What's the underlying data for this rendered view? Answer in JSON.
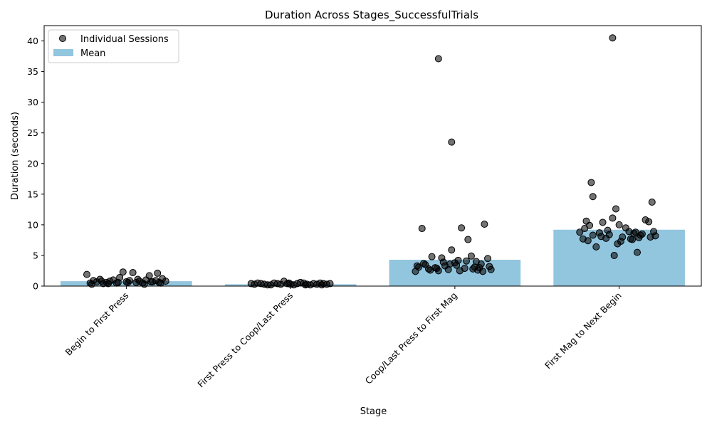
{
  "chart_data": {
    "type": "bar",
    "title": "Duration Across Stages_SuccessfulTrials",
    "xlabel": "Stage",
    "ylabel": "Duration (seconds)",
    "ylim": [
      0,
      42.5
    ],
    "yticks": [
      0,
      5,
      10,
      15,
      20,
      25,
      30,
      35,
      40
    ],
    "categories": [
      "Begin to First Press",
      "First Press to Coop/Last Press",
      "Coop/Last Press to First Mag",
      "First Mag to Next Begin"
    ],
    "legend": {
      "placement": "upper-left",
      "entries": [
        "Individual Sessions",
        "Mean"
      ]
    },
    "colors": {
      "bar": "#92c5de",
      "point": "#000000",
      "point_alpha": 0.55
    },
    "series": [
      {
        "name": "Mean",
        "values": [
          0.8,
          0.3,
          4.3,
          9.2
        ]
      },
      {
        "name": "Individual Sessions",
        "points": [
          [
            [
              -0.24,
              1.9
            ],
            [
              -0.22,
              0.5
            ],
            [
              -0.2,
              0.9
            ],
            [
              -0.18,
              0.7
            ],
            [
              -0.16,
              1.1
            ],
            [
              -0.14,
              0.4
            ],
            [
              -0.12,
              0.6
            ],
            [
              -0.1,
              0.8
            ],
            [
              -0.08,
              1.0
            ],
            [
              -0.06,
              0.5
            ],
            [
              -0.04,
              1.4
            ],
            [
              -0.02,
              2.3
            ],
            [
              0.0,
              0.7
            ],
            [
              0.02,
              0.9
            ],
            [
              0.04,
              2.2
            ],
            [
              0.06,
              0.6
            ],
            [
              0.08,
              0.8
            ],
            [
              0.1,
              0.5
            ],
            [
              0.12,
              1.0
            ],
            [
              0.14,
              1.7
            ],
            [
              0.16,
              0.7
            ],
            [
              0.18,
              0.9
            ],
            [
              0.2,
              0.6
            ],
            [
              0.22,
              1.2
            ],
            [
              0.24,
              0.8
            ],
            [
              -0.21,
              0.3
            ],
            [
              -0.11,
              0.4
            ],
            [
              0.01,
              0.6
            ],
            [
              0.11,
              0.3
            ],
            [
              0.21,
              0.5
            ],
            [
              0.19,
              2.1
            ],
            [
              -0.15,
              0.8
            ],
            [
              0.07,
              1.1
            ],
            [
              -0.05,
              0.6
            ],
            [
              0.15,
              0.7
            ]
          ],
          [
            [
              -0.22,
              0.3
            ],
            [
              -0.18,
              0.4
            ],
            [
              -0.14,
              0.2
            ],
            [
              -0.1,
              0.5
            ],
            [
              -0.06,
              0.3
            ],
            [
              -0.02,
              0.4
            ],
            [
              0.02,
              0.2
            ],
            [
              0.06,
              0.6
            ],
            [
              0.1,
              0.3
            ],
            [
              0.14,
              0.4
            ],
            [
              0.18,
              0.5
            ],
            [
              0.22,
              0.3
            ],
            [
              -0.2,
              0.5
            ],
            [
              -0.12,
              0.2
            ],
            [
              -0.04,
              0.8
            ],
            [
              0.04,
              0.4
            ],
            [
              0.12,
              0.2
            ],
            [
              0.2,
              0.4
            ],
            [
              -0.16,
              0.3
            ],
            [
              -0.08,
              0.4
            ],
            [
              0.0,
              0.3
            ],
            [
              0.08,
              0.5
            ],
            [
              0.16,
              0.3
            ],
            [
              0.24,
              0.4
            ],
            [
              -0.24,
              0.4
            ],
            [
              0.09,
              0.2
            ],
            [
              -0.01,
              0.5
            ],
            [
              0.19,
              0.2
            ]
          ],
          [
            [
              -0.24,
              2.4
            ],
            [
              -0.22,
              3.1
            ],
            [
              -0.2,
              9.4
            ],
            [
              -0.18,
              3.5
            ],
            [
              -0.16,
              2.8
            ],
            [
              -0.14,
              4.8
            ],
            [
              -0.12,
              3.0
            ],
            [
              -0.1,
              2.5
            ],
            [
              -0.08,
              4.6
            ],
            [
              -0.06,
              3.3
            ],
            [
              -0.04,
              2.7
            ],
            [
              -0.02,
              5.9
            ],
            [
              0.0,
              3.8
            ],
            [
              0.02,
              4.2
            ],
            [
              0.04,
              9.5
            ],
            [
              0.06,
              2.9
            ],
            [
              0.08,
              7.6
            ],
            [
              0.1,
              4.9
            ],
            [
              0.12,
              3.1
            ],
            [
              0.14,
              2.6
            ],
            [
              0.16,
              3.6
            ],
            [
              0.18,
              10.1
            ],
            [
              0.2,
              4.5
            ],
            [
              0.22,
              2.7
            ],
            [
              -0.1,
              37.1
            ],
            [
              -0.02,
              23.5
            ],
            [
              -0.19,
              3.7
            ],
            [
              -0.11,
              2.9
            ],
            [
              0.01,
              3.4
            ],
            [
              0.11,
              2.8
            ],
            [
              0.21,
              3.2
            ],
            [
              -0.07,
              3.9
            ],
            [
              0.07,
              4.1
            ],
            [
              -0.15,
              2.6
            ],
            [
              0.15,
              3.0
            ],
            [
              -0.23,
              3.3
            ],
            [
              0.03,
              2.5
            ],
            [
              0.13,
              4.0
            ],
            [
              -0.03,
              3.6
            ],
            [
              0.17,
              2.4
            ]
          ],
          [
            [
              -0.24,
              8.8
            ],
            [
              -0.22,
              7.7
            ],
            [
              -0.2,
              10.6
            ],
            [
              -0.18,
              9.9
            ],
            [
              -0.16,
              8.3
            ],
            [
              -0.14,
              6.4
            ],
            [
              -0.12,
              8.7
            ],
            [
              -0.1,
              10.4
            ],
            [
              -0.08,
              7.8
            ],
            [
              -0.06,
              8.4
            ],
            [
              -0.04,
              11.1
            ],
            [
              -0.02,
              12.6
            ],
            [
              0.0,
              10.0
            ],
            [
              0.02,
              8.0
            ],
            [
              0.04,
              9.5
            ],
            [
              0.06,
              8.9
            ],
            [
              0.08,
              7.6
            ],
            [
              0.1,
              8.8
            ],
            [
              0.12,
              7.9
            ],
            [
              0.14,
              8.5
            ],
            [
              0.16,
              10.8
            ],
            [
              0.18,
              10.5
            ],
            [
              0.2,
              13.7
            ],
            [
              0.22,
              8.2
            ],
            [
              -0.17,
              16.9
            ],
            [
              -0.16,
              14.6
            ],
            [
              -0.04,
              40.5
            ],
            [
              -0.03,
              5.0
            ],
            [
              0.11,
              5.5
            ],
            [
              -0.19,
              7.4
            ],
            [
              -0.11,
              8.1
            ],
            [
              0.01,
              7.3
            ],
            [
              0.09,
              8.6
            ],
            [
              0.21,
              8.9
            ],
            [
              -0.07,
              9.1
            ],
            [
              0.07,
              7.7
            ],
            [
              -0.01,
              6.9
            ],
            [
              0.13,
              8.3
            ],
            [
              -0.21,
              9.4
            ],
            [
              0.19,
              8.0
            ]
          ]
        ]
      }
    ]
  }
}
